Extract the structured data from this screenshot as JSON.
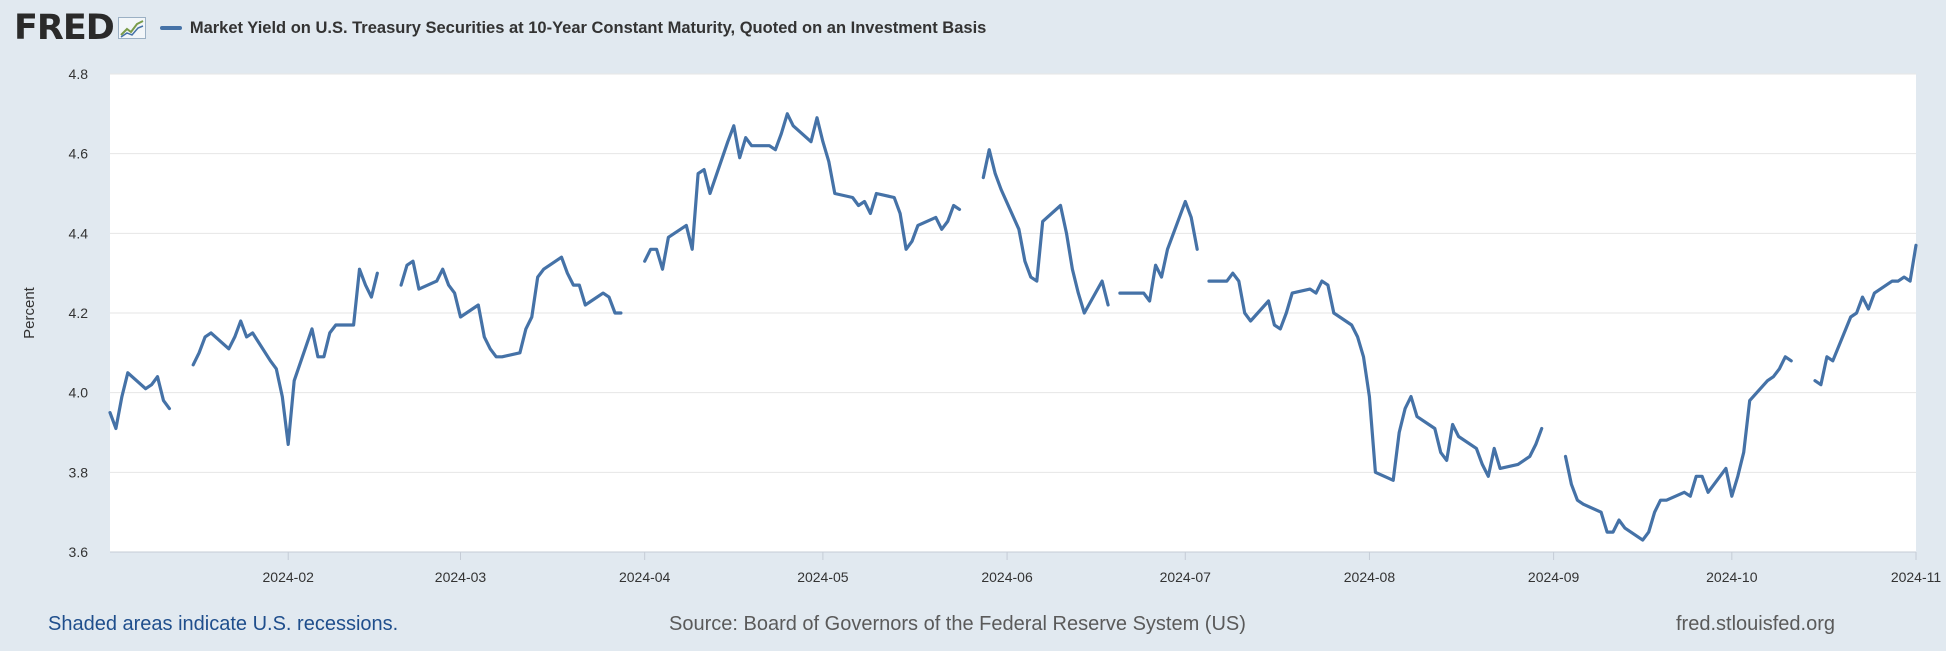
{
  "header": {
    "logo": "FRED",
    "logo_icon": "line-chart-icon",
    "series_title": "Market Yield on U.S. Treasury Securities at 10-Year Constant Maturity, Quoted on an Investment Basis"
  },
  "footer": {
    "recession_note": "Shaded areas indicate U.S. recessions.",
    "source": "Source: Board of Governors of the Federal Reserve System (US)",
    "site": "fred.stlouisfed.org"
  },
  "colors": {
    "line": "#4572a7",
    "background": "#e1e9f0",
    "plot_bg": "#ffffff"
  },
  "chart_data": {
    "type": "line",
    "title": "Market Yield on U.S. Treasury Securities at 10-Year Constant Maturity, Quoted on an Investment Basis",
    "xlabel": "",
    "ylabel": "Percent",
    "ylim": [
      3.6,
      4.8
    ],
    "yticks": [
      "3.6",
      "3.8",
      "4.0",
      "4.2",
      "4.4",
      "4.6",
      "4.8"
    ],
    "xlim": [
      "2024-01-02",
      "2024-11-01"
    ],
    "xticks": [
      "2024-02",
      "2024-03",
      "2024-04",
      "2024-05",
      "2024-06",
      "2024-07",
      "2024-08",
      "2024-09",
      "2024-10",
      "2024-11"
    ],
    "grid": true,
    "legend": "top-left",
    "series": [
      {
        "name": "Market Yield on U.S. Treasury Securities at 10-Year Constant Maturity, Quoted on an Investment Basis",
        "segments": [
          [
            [
              "2024-01-02",
              3.95
            ],
            [
              "2024-01-03",
              3.91
            ],
            [
              "2024-01-04",
              3.99
            ],
            [
              "2024-01-05",
              4.05
            ],
            [
              "2024-01-08",
              4.01
            ],
            [
              "2024-01-09",
              4.02
            ],
            [
              "2024-01-10",
              4.04
            ],
            [
              "2024-01-11",
              3.98
            ],
            [
              "2024-01-12",
              3.96
            ]
          ],
          [
            [
              "2024-01-16",
              4.07
            ],
            [
              "2024-01-17",
              4.1
            ],
            [
              "2024-01-18",
              4.14
            ],
            [
              "2024-01-19",
              4.15
            ],
            [
              "2024-01-22",
              4.11
            ],
            [
              "2024-01-23",
              4.14
            ],
            [
              "2024-01-24",
              4.18
            ],
            [
              "2024-01-25",
              4.14
            ],
            [
              "2024-01-26",
              4.15
            ],
            [
              "2024-01-29",
              4.08
            ],
            [
              "2024-01-30",
              4.06
            ],
            [
              "2024-01-31",
              3.99
            ],
            [
              "2024-02-01",
              3.87
            ],
            [
              "2024-02-02",
              4.03
            ],
            [
              "2024-02-05",
              4.16
            ],
            [
              "2024-02-06",
              4.09
            ],
            [
              "2024-02-07",
              4.09
            ],
            [
              "2024-02-08",
              4.15
            ],
            [
              "2024-02-09",
              4.17
            ],
            [
              "2024-02-12",
              4.17
            ],
            [
              "2024-02-13",
              4.31
            ],
            [
              "2024-02-14",
              4.27
            ],
            [
              "2024-02-15",
              4.24
            ],
            [
              "2024-02-16",
              4.3
            ]
          ],
          [
            [
              "2024-02-20",
              4.27
            ],
            [
              "2024-02-21",
              4.32
            ],
            [
              "2024-02-22",
              4.33
            ],
            [
              "2024-02-23",
              4.26
            ],
            [
              "2024-02-26",
              4.28
            ],
            [
              "2024-02-27",
              4.31
            ],
            [
              "2024-02-28",
              4.27
            ],
            [
              "2024-02-29",
              4.25
            ],
            [
              "2024-03-01",
              4.19
            ],
            [
              "2024-03-04",
              4.22
            ],
            [
              "2024-03-05",
              4.14
            ],
            [
              "2024-03-06",
              4.11
            ],
            [
              "2024-03-07",
              4.09
            ],
            [
              "2024-03-08",
              4.09
            ],
            [
              "2024-03-11",
              4.1
            ],
            [
              "2024-03-12",
              4.16
            ],
            [
              "2024-03-13",
              4.19
            ],
            [
              "2024-03-14",
              4.29
            ],
            [
              "2024-03-15",
              4.31
            ],
            [
              "2024-03-18",
              4.34
            ],
            [
              "2024-03-19",
              4.3
            ],
            [
              "2024-03-20",
              4.27
            ],
            [
              "2024-03-21",
              4.27
            ],
            [
              "2024-03-22",
              4.22
            ],
            [
              "2024-03-25",
              4.25
            ],
            [
              "2024-03-26",
              4.24
            ],
            [
              "2024-03-27",
              4.2
            ],
            [
              "2024-03-28",
              4.2
            ]
          ],
          [
            [
              "2024-04-01",
              4.33
            ],
            [
              "2024-04-02",
              4.36
            ],
            [
              "2024-04-03",
              4.36
            ],
            [
              "2024-04-04",
              4.31
            ],
            [
              "2024-04-05",
              4.39
            ],
            [
              "2024-04-08",
              4.42
            ],
            [
              "2024-04-09",
              4.36
            ],
            [
              "2024-04-10",
              4.55
            ],
            [
              "2024-04-11",
              4.56
            ],
            [
              "2024-04-12",
              4.5
            ],
            [
              "2024-04-15",
              4.63
            ],
            [
              "2024-04-16",
              4.67
            ],
            [
              "2024-04-17",
              4.59
            ],
            [
              "2024-04-18",
              4.64
            ],
            [
              "2024-04-19",
              4.62
            ],
            [
              "2024-04-22",
              4.62
            ],
            [
              "2024-04-23",
              4.61
            ],
            [
              "2024-04-24",
              4.65
            ],
            [
              "2024-04-25",
              4.7
            ],
            [
              "2024-04-26",
              4.67
            ],
            [
              "2024-04-29",
              4.63
            ],
            [
              "2024-04-30",
              4.69
            ],
            [
              "2024-05-01",
              4.63
            ],
            [
              "2024-05-02",
              4.58
            ],
            [
              "2024-05-03",
              4.5
            ],
            [
              "2024-05-06",
              4.49
            ],
            [
              "2024-05-07",
              4.47
            ],
            [
              "2024-05-08",
              4.48
            ],
            [
              "2024-05-09",
              4.45
            ],
            [
              "2024-05-10",
              4.5
            ],
            [
              "2024-05-13",
              4.49
            ],
            [
              "2024-05-14",
              4.45
            ],
            [
              "2024-05-15",
              4.36
            ],
            [
              "2024-05-16",
              4.38
            ],
            [
              "2024-05-17",
              4.42
            ],
            [
              "2024-05-20",
              4.44
            ],
            [
              "2024-05-21",
              4.41
            ],
            [
              "2024-05-22",
              4.43
            ],
            [
              "2024-05-23",
              4.47
            ],
            [
              "2024-05-24",
              4.46
            ]
          ],
          [
            [
              "2024-05-28",
              4.54
            ],
            [
              "2024-05-29",
              4.61
            ],
            [
              "2024-05-30",
              4.55
            ],
            [
              "2024-05-31",
              4.51
            ],
            [
              "2024-06-03",
              4.41
            ],
            [
              "2024-06-04",
              4.33
            ],
            [
              "2024-06-05",
              4.29
            ],
            [
              "2024-06-06",
              4.28
            ],
            [
              "2024-06-07",
              4.43
            ],
            [
              "2024-06-10",
              4.47
            ],
            [
              "2024-06-11",
              4.4
            ],
            [
              "2024-06-12",
              4.31
            ],
            [
              "2024-06-13",
              4.25
            ],
            [
              "2024-06-14",
              4.2
            ],
            [
              "2024-06-17",
              4.28
            ],
            [
              "2024-06-18",
              4.22
            ]
          ],
          [
            [
              "2024-06-20",
              4.25
            ],
            [
              "2024-06-21",
              4.25
            ],
            [
              "2024-06-24",
              4.25
            ],
            [
              "2024-06-25",
              4.23
            ],
            [
              "2024-06-26",
              4.32
            ],
            [
              "2024-06-27",
              4.29
            ],
            [
              "2024-06-28",
              4.36
            ],
            [
              "2024-07-01",
              4.48
            ],
            [
              "2024-07-02",
              4.44
            ],
            [
              "2024-07-03",
              4.36
            ]
          ],
          [
            [
              "2024-07-05",
              4.28
            ],
            [
              "2024-07-08",
              4.28
            ],
            [
              "2024-07-09",
              4.3
            ],
            [
              "2024-07-10",
              4.28
            ],
            [
              "2024-07-11",
              4.2
            ],
            [
              "2024-07-12",
              4.18
            ],
            [
              "2024-07-15",
              4.23
            ],
            [
              "2024-07-16",
              4.17
            ],
            [
              "2024-07-17",
              4.16
            ],
            [
              "2024-07-18",
              4.2
            ],
            [
              "2024-07-19",
              4.25
            ],
            [
              "2024-07-22",
              4.26
            ],
            [
              "2024-07-23",
              4.25
            ],
            [
              "2024-07-24",
              4.28
            ],
            [
              "2024-07-25",
              4.27
            ],
            [
              "2024-07-26",
              4.2
            ],
            [
              "2024-07-29",
              4.17
            ],
            [
              "2024-07-30",
              4.14
            ],
            [
              "2024-07-31",
              4.09
            ],
            [
              "2024-08-01",
              3.99
            ],
            [
              "2024-08-02",
              3.8
            ],
            [
              "2024-08-05",
              3.78
            ],
            [
              "2024-08-06",
              3.9
            ],
            [
              "2024-08-07",
              3.96
            ],
            [
              "2024-08-08",
              3.99
            ],
            [
              "2024-08-09",
              3.94
            ],
            [
              "2024-08-12",
              3.91
            ],
            [
              "2024-08-13",
              3.85
            ],
            [
              "2024-08-14",
              3.83
            ],
            [
              "2024-08-15",
              3.92
            ],
            [
              "2024-08-16",
              3.89
            ],
            [
              "2024-08-19",
              3.86
            ],
            [
              "2024-08-20",
              3.82
            ],
            [
              "2024-08-21",
              3.79
            ],
            [
              "2024-08-22",
              3.86
            ],
            [
              "2024-08-23",
              3.81
            ],
            [
              "2024-08-26",
              3.82
            ],
            [
              "2024-08-27",
              3.83
            ],
            [
              "2024-08-28",
              3.84
            ],
            [
              "2024-08-29",
              3.87
            ],
            [
              "2024-08-30",
              3.91
            ]
          ],
          [
            [
              "2024-09-03",
              3.84
            ],
            [
              "2024-09-04",
              3.77
            ],
            [
              "2024-09-05",
              3.73
            ],
            [
              "2024-09-06",
              3.72
            ],
            [
              "2024-09-09",
              3.7
            ],
            [
              "2024-09-10",
              3.65
            ],
            [
              "2024-09-11",
              3.65
            ],
            [
              "2024-09-12",
              3.68
            ],
            [
              "2024-09-13",
              3.66
            ],
            [
              "2024-09-16",
              3.63
            ],
            [
              "2024-09-17",
              3.65
            ],
            [
              "2024-09-18",
              3.7
            ],
            [
              "2024-09-19",
              3.73
            ],
            [
              "2024-09-20",
              3.73
            ],
            [
              "2024-09-23",
              3.75
            ],
            [
              "2024-09-24",
              3.74
            ],
            [
              "2024-09-25",
              3.79
            ],
            [
              "2024-09-26",
              3.79
            ],
            [
              "2024-09-27",
              3.75
            ],
            [
              "2024-09-30",
              3.81
            ],
            [
              "2024-10-01",
              3.74
            ],
            [
              "2024-10-02",
              3.79
            ],
            [
              "2024-10-03",
              3.85
            ],
            [
              "2024-10-04",
              3.98
            ],
            [
              "2024-10-07",
              4.03
            ],
            [
              "2024-10-08",
              4.04
            ],
            [
              "2024-10-09",
              4.06
            ],
            [
              "2024-10-10",
              4.09
            ],
            [
              "2024-10-11",
              4.08
            ]
          ],
          [
            [
              "2024-10-15",
              4.03
            ],
            [
              "2024-10-16",
              4.02
            ],
            [
              "2024-10-17",
              4.09
            ],
            [
              "2024-10-18",
              4.08
            ],
            [
              "2024-10-21",
              4.19
            ],
            [
              "2024-10-22",
              4.2
            ],
            [
              "2024-10-23",
              4.24
            ],
            [
              "2024-10-24",
              4.21
            ],
            [
              "2024-10-25",
              4.25
            ],
            [
              "2024-10-28",
              4.28
            ],
            [
              "2024-10-29",
              4.28
            ],
            [
              "2024-10-30",
              4.29
            ],
            [
              "2024-10-31",
              4.28
            ],
            [
              "2024-11-01",
              4.37
            ]
          ]
        ]
      }
    ]
  }
}
